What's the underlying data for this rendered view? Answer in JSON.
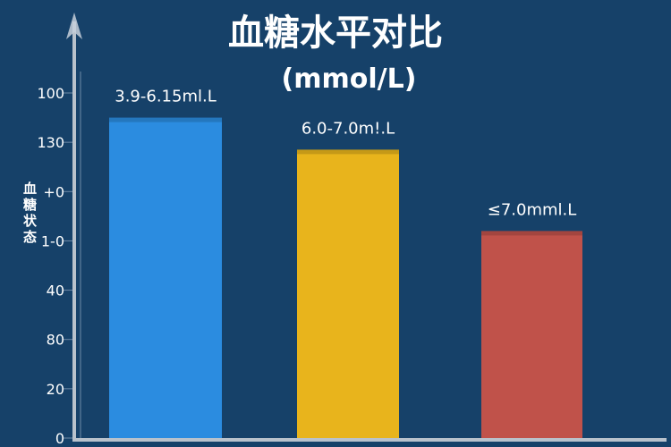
{
  "chart_data": {
    "type": "bar",
    "title": "血糖水平对比",
    "subtitle": "(mmol/L)",
    "ylabel": "血糖状态",
    "xlabel": "",
    "y_tick_labels": [
      "0",
      "20",
      "80",
      "40",
      "1-0",
      "+0",
      "130",
      "100"
    ],
    "ylim": [
      0,
      7
    ],
    "categories": [
      "3.9-6.15ml.L",
      "6.0-7.0m!.L",
      "≤7.0mml.L"
    ],
    "values": [
      6.5,
      5.85,
      4.2
    ],
    "colors": [
      "#2b8ce0",
      "#e8b41c",
      "#c0524a"
    ],
    "grid": false,
    "legend": "none"
  },
  "colors": {
    "background": "#164169",
    "axis": "#b9c2cc"
  }
}
